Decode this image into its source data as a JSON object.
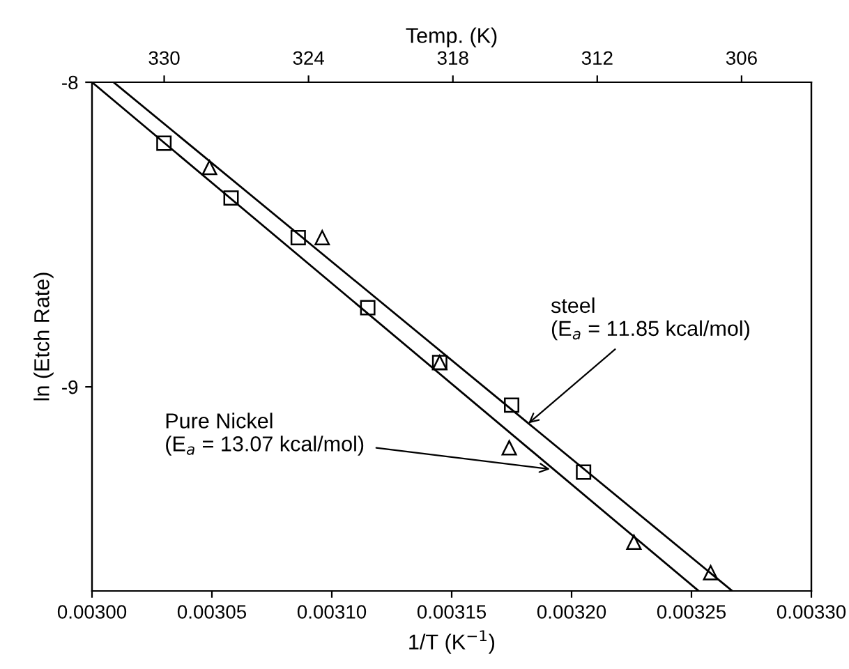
{
  "chart_data": {
    "type": "scatter",
    "xlabel": "1/T (K$^{−1}$)",
    "ylabel": "ln (Etch Rate)",
    "x2label": "Temp. (K)",
    "xlim": [
      0.003,
      0.0033
    ],
    "xticks": [
      {
        "value": 0.003,
        "label": "0.00300"
      },
      {
        "value": 0.00305,
        "label": "0.00305"
      },
      {
        "value": 0.0031,
        "label": "0.00310"
      },
      {
        "value": 0.00315,
        "label": "0.00315"
      },
      {
        "value": 0.0032,
        "label": "0.00320"
      },
      {
        "value": 0.00325,
        "label": "0.00325"
      },
      {
        "value": 0.0033,
        "label": "0.00330"
      }
    ],
    "x2lim": [
      333.0,
      303.1
    ],
    "x2ticks": [
      330,
      324,
      318,
      312,
      306
    ],
    "ylim": [
      -9.67,
      -8
    ],
    "yticks": [
      -8,
      -9
    ],
    "grid": false,
    "legend": false,
    "series": [
      {
        "marker": "square",
        "color": "#000000",
        "x": [
          0.00303,
          0.003058,
          0.003086,
          0.003115,
          0.003145,
          0.003175,
          0.003205
        ],
        "values": [
          -8.2,
          -8.38,
          -8.51,
          -8.74,
          -8.92,
          -9.06,
          -9.28
        ]
      },
      {
        "marker": "triangle",
        "color": "#000000",
        "x": [
          0.003049,
          0.003096,
          0.003145,
          0.003174,
          0.003226,
          0.003258
        ],
        "values": [
          -8.28,
          -8.51,
          -8.92,
          -9.2,
          -9.51,
          -9.61
        ]
      },
      {
        "type": "line",
        "marker": "none",
        "line_style": "solid",
        "color": "#000000",
        "x": [
          0.003009,
          0.003267
        ],
        "values": [
          -8,
          -9.67
        ]
      },
      {
        "type": "line",
        "marker": "none",
        "line_style": "solid",
        "color": "#000000",
        "x": [
          0.003,
          0.003253
        ],
        "values": [
          -8,
          -9.67
        ]
      }
    ],
    "annotations": [
      {
        "text": "steel\n(E$_{a}$ = 11.85 kcal/mol)",
        "x": 0.003182,
        "y": -9.12
      },
      {
        "text": "Pure Nickel\n(E$_{a}$ = 13.07 kcal/mol)",
        "x": 0.003191,
        "y": -9.27
      }
    ]
  }
}
